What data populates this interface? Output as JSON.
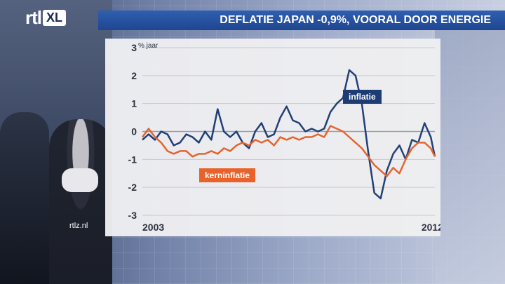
{
  "logo": {
    "brand": "rtl",
    "sub": "XL"
  },
  "watermark": "rtlz.nl",
  "chart_data": {
    "type": "line",
    "title": "DEFLATIE JAPAN -0,9%, VOORAL DOOR ENERGIE",
    "ylabel": "% jaar",
    "ylim": [
      -3,
      3
    ],
    "yticks": [
      3,
      2,
      1,
      0,
      -1,
      -2,
      -3
    ],
    "xlim": [
      2003.0,
      2012.33
    ],
    "xtick_labels": [
      {
        "x": 2003.0,
        "label": "2003"
      },
      {
        "x": 2012.25,
        "label": "2012"
      }
    ],
    "grid": true,
    "colors": {
      "inflatie": "#1d3c73",
      "kerninflatie": "#e8622a"
    },
    "series": [
      {
        "name": "inflatie",
        "points": [
          [
            2003.0,
            -0.3
          ],
          [
            2003.2,
            -0.1
          ],
          [
            2003.4,
            -0.3
          ],
          [
            2003.6,
            0.0
          ],
          [
            2003.8,
            -0.1
          ],
          [
            2004.0,
            -0.5
          ],
          [
            2004.2,
            -0.4
          ],
          [
            2004.4,
            -0.1
          ],
          [
            2004.6,
            -0.2
          ],
          [
            2004.8,
            -0.4
          ],
          [
            2005.0,
            0.0
          ],
          [
            2005.2,
            -0.3
          ],
          [
            2005.4,
            0.8
          ],
          [
            2005.6,
            0.0
          ],
          [
            2005.8,
            -0.2
          ],
          [
            2006.0,
            0.0
          ],
          [
            2006.2,
            -0.4
          ],
          [
            2006.4,
            -0.6
          ],
          [
            2006.6,
            0.0
          ],
          [
            2006.8,
            0.3
          ],
          [
            2007.0,
            -0.2
          ],
          [
            2007.2,
            -0.1
          ],
          [
            2007.4,
            0.5
          ],
          [
            2007.6,
            0.9
          ],
          [
            2007.8,
            0.4
          ],
          [
            2008.0,
            0.3
          ],
          [
            2008.2,
            0.0
          ],
          [
            2008.4,
            0.1
          ],
          [
            2008.6,
            0.0
          ],
          [
            2008.8,
            0.1
          ],
          [
            2009.0,
            0.7
          ],
          [
            2009.2,
            1.0
          ],
          [
            2009.4,
            1.2
          ],
          [
            2009.6,
            2.2
          ],
          [
            2009.8,
            2.0
          ],
          [
            2010.0,
            1.0
          ],
          [
            2010.2,
            -0.7
          ],
          [
            2010.4,
            -2.2
          ],
          [
            2010.6,
            -2.4
          ],
          [
            2010.8,
            -1.4
          ],
          [
            2011.0,
            -0.8
          ],
          [
            2011.2,
            -0.5
          ],
          [
            2011.4,
            -1.0
          ],
          [
            2011.6,
            -0.3
          ],
          [
            2011.8,
            -0.4
          ],
          [
            2012.0,
            0.3
          ],
          [
            2012.2,
            -0.2
          ],
          [
            2012.33,
            -0.9
          ]
        ]
      },
      {
        "name": "kerninflatie",
        "points": [
          [
            2003.0,
            -0.2
          ],
          [
            2003.2,
            0.1
          ],
          [
            2003.4,
            -0.2
          ],
          [
            2003.6,
            -0.4
          ],
          [
            2003.8,
            -0.7
          ],
          [
            2004.0,
            -0.8
          ],
          [
            2004.2,
            -0.7
          ],
          [
            2004.4,
            -0.7
          ],
          [
            2004.6,
            -0.9
          ],
          [
            2004.8,
            -0.8
          ],
          [
            2005.0,
            -0.8
          ],
          [
            2005.2,
            -0.7
          ],
          [
            2005.4,
            -0.8
          ],
          [
            2005.6,
            -0.6
          ],
          [
            2005.8,
            -0.7
          ],
          [
            2006.0,
            -0.5
          ],
          [
            2006.2,
            -0.4
          ],
          [
            2006.4,
            -0.5
          ],
          [
            2006.6,
            -0.3
          ],
          [
            2006.8,
            -0.4
          ],
          [
            2007.0,
            -0.3
          ],
          [
            2007.2,
            -0.5
          ],
          [
            2007.4,
            -0.2
          ],
          [
            2007.6,
            -0.3
          ],
          [
            2007.8,
            -0.2
          ],
          [
            2008.0,
            -0.3
          ],
          [
            2008.2,
            -0.2
          ],
          [
            2008.4,
            -0.2
          ],
          [
            2008.6,
            -0.1
          ],
          [
            2008.8,
            -0.2
          ],
          [
            2009.0,
            0.2
          ],
          [
            2009.2,
            0.1
          ],
          [
            2009.4,
            0.0
          ],
          [
            2009.6,
            -0.2
          ],
          [
            2009.8,
            -0.4
          ],
          [
            2010.0,
            -0.6
          ],
          [
            2010.2,
            -0.9
          ],
          [
            2010.4,
            -1.2
          ],
          [
            2010.6,
            -1.4
          ],
          [
            2010.8,
            -1.6
          ],
          [
            2011.0,
            -1.3
          ],
          [
            2011.2,
            -1.5
          ],
          [
            2011.4,
            -1.0
          ],
          [
            2011.6,
            -0.6
          ],
          [
            2011.8,
            -0.4
          ],
          [
            2012.0,
            -0.4
          ],
          [
            2012.2,
            -0.6
          ],
          [
            2012.33,
            -0.9
          ]
        ]
      }
    ]
  }
}
